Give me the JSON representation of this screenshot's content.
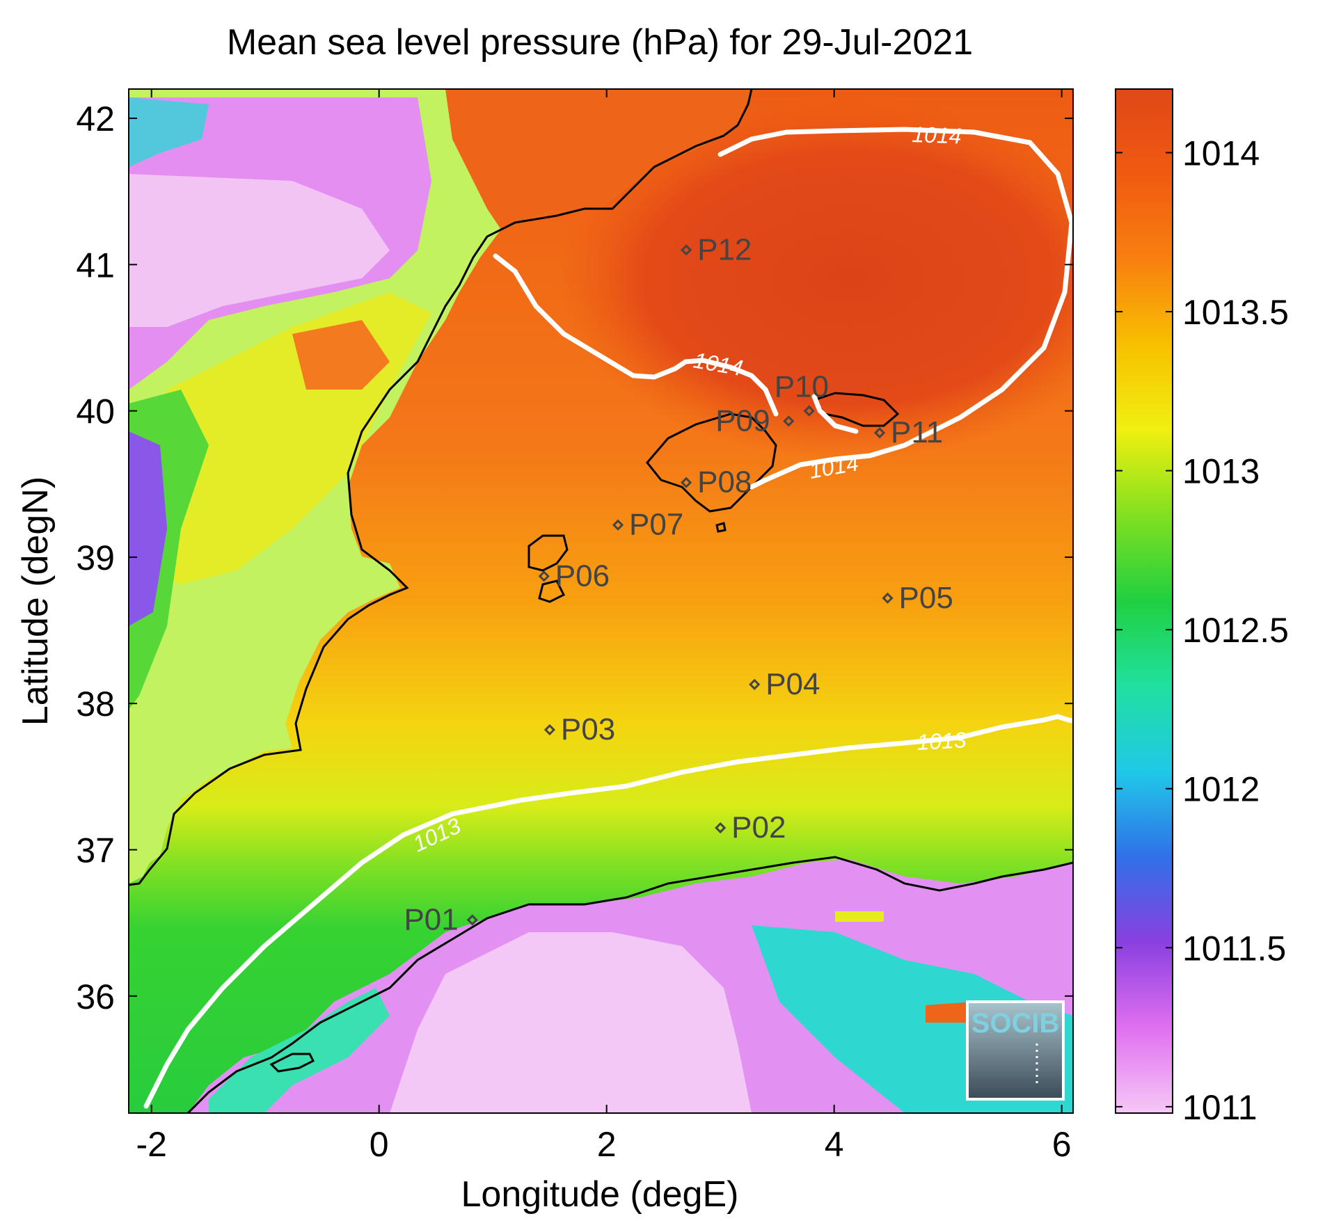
{
  "title": "Mean sea level pressure (hPa) for 29-Jul-2021",
  "xlabel": "Longitude (degE)",
  "ylabel": "Latitude (degN)",
  "logo_text": "SOCIB",
  "chart_data": {
    "type": "heatmap",
    "title": "Mean sea level pressure (hPa) for 29-Jul-2021",
    "xlabel": "Longitude (degE)",
    "ylabel": "Latitude (degN)",
    "xlim": [
      -2.2,
      6.1
    ],
    "ylim": [
      35.2,
      42.2
    ],
    "xticks": [
      -2,
      0,
      2,
      4,
      6
    ],
    "yticks": [
      36,
      37,
      38,
      39,
      40,
      41,
      42
    ],
    "colorbar": {
      "range": [
        1010.98,
        1014.2
      ],
      "ticks": [
        "1011",
        "1011.5",
        "1012",
        "1012.5",
        "1013",
        "1013.5",
        "1014"
      ],
      "colormap": [
        "#f6c8f6",
        "#e070f0",
        "#8a40e0",
        "#3070e8",
        "#20c8e8",
        "#20e0a0",
        "#20d040",
        "#80e020",
        "#f0f010",
        "#f8c000",
        "#f88010",
        "#f05a10",
        "#e04818"
      ]
    },
    "contours": [
      {
        "level": 1014,
        "label": "1014"
      },
      {
        "level": 1013,
        "label": "1013"
      }
    ],
    "points": [
      {
        "name": "P01",
        "lon": 0.82,
        "lat": 36.52
      },
      {
        "name": "P02",
        "lon": 3.0,
        "lat": 37.15
      },
      {
        "name": "P03",
        "lon": 1.5,
        "lat": 37.82
      },
      {
        "name": "P04",
        "lon": 3.3,
        "lat": 38.13
      },
      {
        "name": "P05",
        "lon": 4.47,
        "lat": 38.72
      },
      {
        "name": "P06",
        "lon": 1.45,
        "lat": 38.87
      },
      {
        "name": "P07",
        "lon": 2.1,
        "lat": 39.22
      },
      {
        "name": "P08",
        "lon": 2.7,
        "lat": 39.51
      },
      {
        "name": "P09",
        "lon": 3.6,
        "lat": 39.93
      },
      {
        "name": "P10",
        "lon": 3.78,
        "lat": 40.0
      },
      {
        "name": "P11",
        "lon": 4.4,
        "lat": 39.85
      },
      {
        "name": "P12",
        "lon": 2.7,
        "lat": 41.1
      }
    ]
  }
}
